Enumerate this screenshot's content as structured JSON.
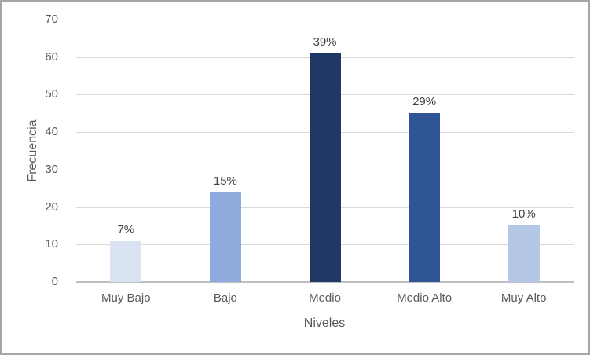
{
  "chart_data": {
    "type": "bar",
    "title": "",
    "xlabel": "Niveles",
    "ylabel": "Frecuencia",
    "categories": [
      "Muy Bajo",
      "Bajo",
      "Medio",
      "Medio Alto",
      "Muy Alto"
    ],
    "values": [
      11,
      24,
      61,
      45,
      15
    ],
    "data_labels": [
      "7%",
      "15%",
      "39%",
      "29%",
      "10%"
    ],
    "bar_colors": [
      "#dae3f2",
      "#8faadc",
      "#1f3864",
      "#2f5597",
      "#b4c7e7"
    ],
    "ylim": [
      0,
      70
    ],
    "yticks": [
      0,
      10,
      20,
      30,
      40,
      50,
      60,
      70
    ],
    "grid": true,
    "legend": false
  },
  "colors": {
    "axis_text": "#595959",
    "data_label_text": "#404040",
    "gridline": "#d9d9d9",
    "axis_line": "#bfbfbf",
    "frame_border": "#a6a6a6",
    "background": "#ffffff"
  }
}
